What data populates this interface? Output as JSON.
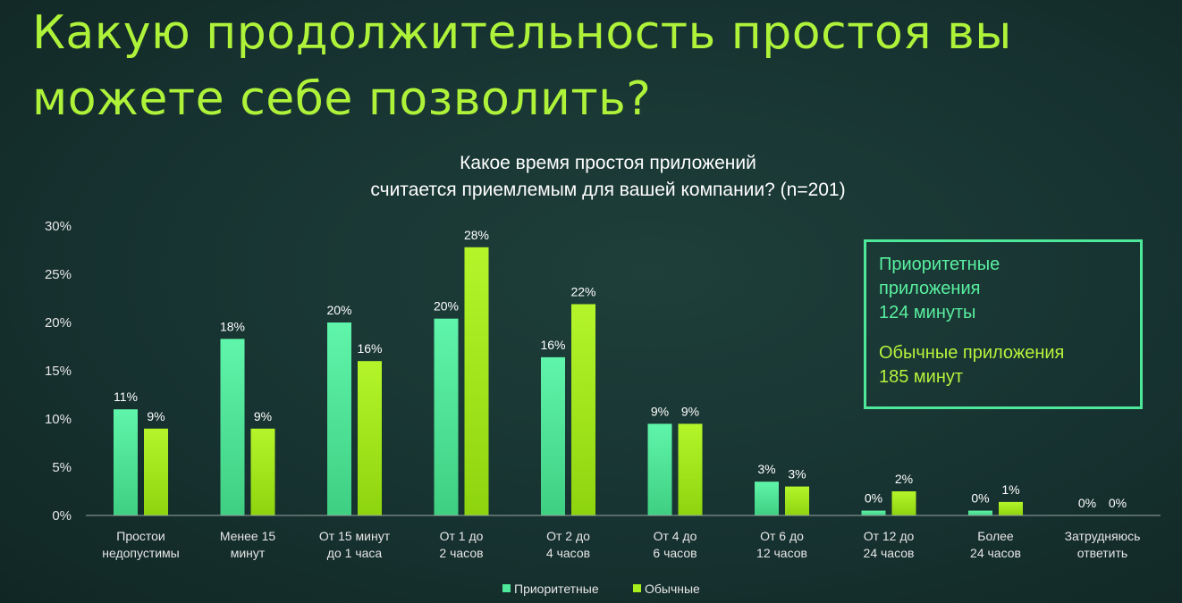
{
  "slide": {
    "title": "Какую продолжительность простоя вы можете себе позволить?"
  },
  "info_box": {
    "priority_label_1": "Приоритетные",
    "priority_label_2": "приложения",
    "priority_value": "124 минуты",
    "normal_label": "Обычные приложения",
    "normal_value": "185 минут"
  },
  "colors": {
    "priority": "#4ee89a",
    "normal": "#a8ee1c",
    "title": "#aef23a"
  },
  "chart_data": {
    "type": "bar",
    "title_line1": "Какое время простоя приложений",
    "title_line2": "считается приемлемым для вашей компании? (n=201)",
    "categories": [
      [
        "Простои",
        "недопустимы"
      ],
      [
        "Менее 15",
        "минут"
      ],
      [
        "От 15 минут",
        "до 1 часа"
      ],
      [
        "От 1 до",
        "2 часов"
      ],
      [
        "От 2 до",
        "4 часов"
      ],
      [
        "От 4 до",
        "6 часов"
      ],
      [
        "От 6 до",
        "12 часов"
      ],
      [
        "От 12 до",
        "24 часов"
      ],
      [
        "Более",
        "24 часов"
      ],
      [
        "Затрудняюсь",
        "ответить"
      ]
    ],
    "series": [
      {
        "name": "Приоритетные",
        "values": [
          11,
          18.3,
          20,
          20.4,
          16.4,
          9.5,
          3.5,
          0.5,
          0.5,
          0
        ],
        "labels": [
          "11%",
          "18%",
          "20%",
          "20%",
          "16%",
          "9%",
          "3%",
          "0%",
          "0%",
          "0%"
        ]
      },
      {
        "name": "Обычные",
        "values": [
          9,
          9,
          16,
          27.8,
          21.9,
          9.5,
          3,
          2.5,
          1.4,
          0
        ],
        "labels": [
          "9%",
          "9%",
          "16%",
          "28%",
          "22%",
          "9%",
          "3%",
          "2%",
          "1%",
          "0%"
        ]
      }
    ],
    "ylim": [
      0,
      30
    ],
    "yticks": [
      "0%",
      "5%",
      "10%",
      "15%",
      "20%",
      "25%",
      "30%"
    ],
    "legend_position": "bottom",
    "grid": false
  }
}
